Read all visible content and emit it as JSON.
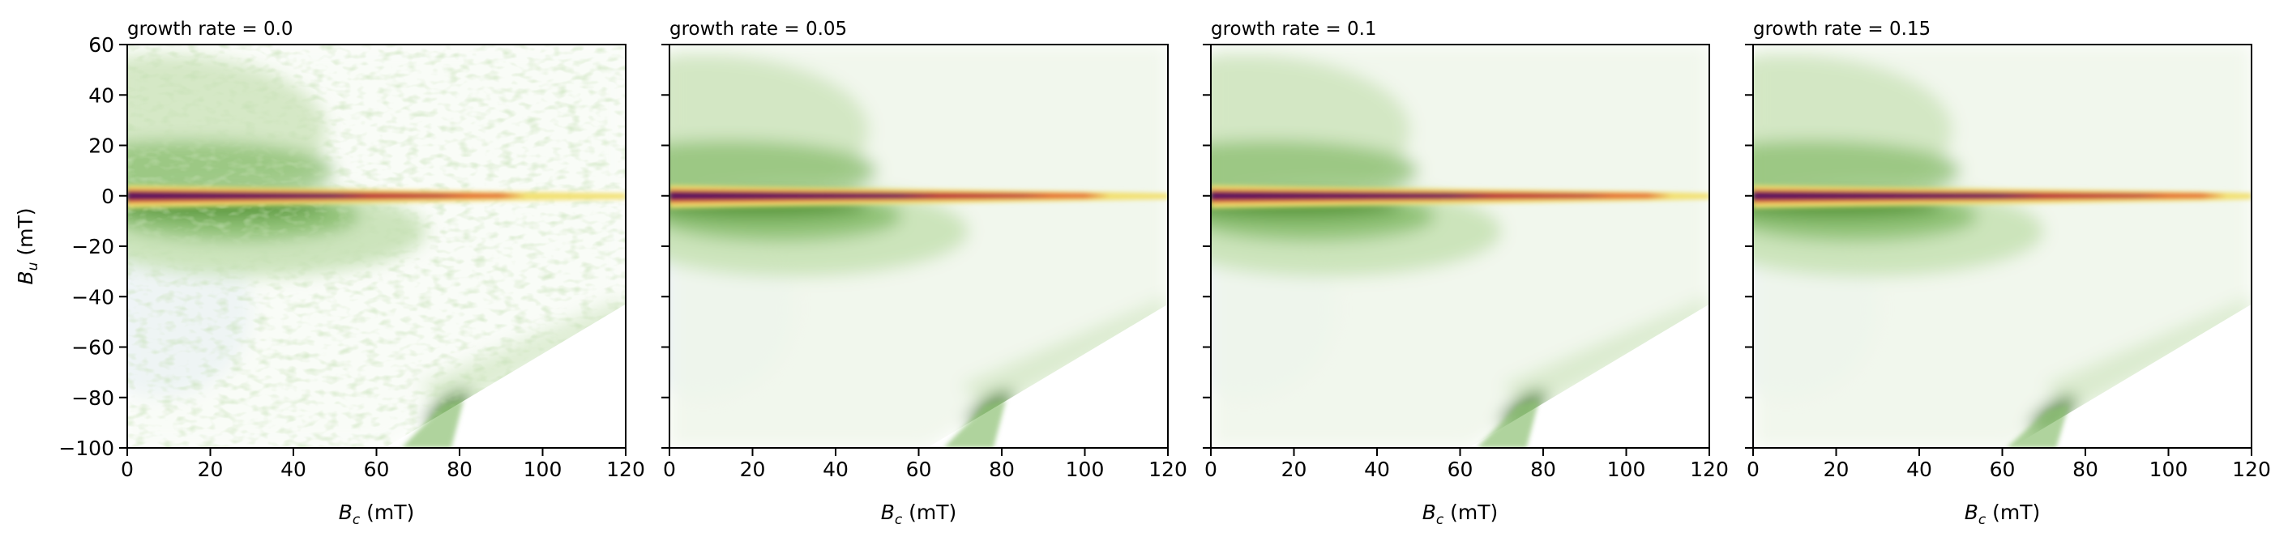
{
  "chart_data": [
    {
      "type": "heatmap",
      "title": "growth rate = 0.0",
      "growth_rate": 0.0,
      "xlabel": "B_c (mT)",
      "ylabel": "B_u (mT)",
      "xlim": [
        0,
        120
      ],
      "ylim": [
        -100,
        60
      ],
      "xticks": [
        0,
        20,
        40,
        60,
        80,
        100,
        120
      ],
      "yticks": [
        -100,
        -80,
        -60,
        -40,
        -20,
        0,
        20,
        40,
        60
      ],
      "grid": false,
      "ridge_y": 0,
      "ridge_end_x": 90,
      "lobe_peak_x": 30,
      "hotspot": [
        80,
        -82
      ],
      "texture": "noisy"
    },
    {
      "type": "heatmap",
      "title": "growth rate = 0.05",
      "growth_rate": 0.05,
      "xlabel": "B_c (mT)",
      "ylabel": "",
      "xlim": [
        0,
        120
      ],
      "ylim": [
        -100,
        60
      ],
      "xticks": [
        0,
        20,
        40,
        60,
        80,
        100,
        120
      ],
      "yticks": [
        -100,
        -80,
        -60,
        -40,
        -20,
        0,
        20,
        40,
        60
      ],
      "grid": false,
      "ridge_y": 0,
      "ridge_end_x": 100,
      "lobe_peak_x": 30,
      "hotspot": [
        80,
        -82
      ],
      "texture": "smooth"
    },
    {
      "type": "heatmap",
      "title": "growth rate = 0.1",
      "growth_rate": 0.1,
      "xlabel": "B_c (mT)",
      "ylabel": "",
      "xlim": [
        0,
        120
      ],
      "ylim": [
        -100,
        60
      ],
      "xticks": [
        0,
        20,
        40,
        60,
        80,
        100,
        120
      ],
      "yticks": [
        -100,
        -80,
        -60,
        -40,
        -20,
        0,
        20,
        40,
        60
      ],
      "grid": false,
      "ridge_y": 0,
      "ridge_end_x": 105,
      "lobe_peak_x": 28,
      "hotspot": [
        78,
        -82
      ],
      "texture": "smooth"
    },
    {
      "type": "heatmap",
      "title": "growth rate = 0.15",
      "growth_rate": 0.15,
      "xlabel": "B_c (mT)",
      "ylabel": "",
      "xlim": [
        0,
        120
      ],
      "ylim": [
        -100,
        60
      ],
      "xticks": [
        0,
        20,
        40,
        60,
        80,
        100,
        120
      ],
      "yticks": [
        -100,
        -80,
        -60,
        -40,
        -20,
        0,
        20,
        40,
        60
      ],
      "grid": false,
      "ridge_y": 0,
      "ridge_end_x": 108,
      "lobe_peak_x": 28,
      "hotspot": [
        75,
        -84
      ],
      "texture": "smooth"
    }
  ],
  "colors": {
    "background": "#ffffff",
    "outer_band": "#eef5e9",
    "lobe_light": "#c8e2b6",
    "lobe_mid": "#8ec174",
    "lobe_dark": "#5b9a3c",
    "lobe_deep": "#3f7e27",
    "ridge_yellow": "#f2e070",
    "ridge_orange": "#e55a2a",
    "ridge_red": "#b01c3f",
    "ridge_core": "#4a1660",
    "lower_tint": "#eef3fb"
  }
}
